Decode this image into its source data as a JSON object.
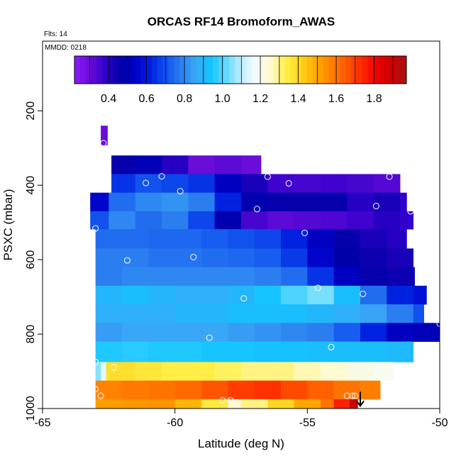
{
  "chart_data": {
    "type": "heatmap",
    "title": "ORCAS RF14 Bromoform_AWAS",
    "flights_note": "Flts: 14",
    "date_note": "MMDD: 0218",
    "xlabel": "Latitude (deg N)",
    "ylabel": "PSXC (mbar)",
    "xlim": [
      -65,
      -50
    ],
    "ylim": [
      1000,
      50
    ],
    "x_ticks": [
      -65,
      -60,
      -55,
      -50
    ],
    "y_ticks": [
      200,
      400,
      600,
      800,
      1000
    ],
    "grid": false,
    "colorbar": {
      "placement": "top",
      "range": [
        0.22,
        1.97
      ],
      "ticks": [
        0.4,
        0.6,
        0.8,
        1.0,
        1.2,
        1.4,
        1.6,
        1.8
      ],
      "tick_labels": [
        "0.4",
        "0.6",
        "0.8",
        "1.0",
        "1.2",
        "1.4",
        "1.6",
        "1.8"
      ],
      "palette": [
        "#8c1aff",
        "#6a0dd8",
        "#3300cc",
        "#0000a8",
        "#0000c8",
        "#0020e0",
        "#1050ee",
        "#2a7cf0",
        "#3aa6f5",
        "#12c4ff",
        "#5ad8ff",
        "#bfeeff",
        "#f4fbff",
        "#fffad0",
        "#fff04a",
        "#ffd21a",
        "#ffab00",
        "#ff8200",
        "#ff5a00",
        "#ff2a00",
        "#ee0000",
        "#cc0000",
        "#a81414"
      ]
    },
    "layers": [
      {
        "p_top": 240,
        "p_bot": 292,
        "cells": [
          [
            -62.8,
            -62.55,
            0.3
          ]
        ]
      },
      {
        "p_top": 320,
        "p_bot": 370,
        "cells": [
          [
            -62.4,
            -61.5,
            0.45
          ],
          [
            -61.5,
            -60.5,
            0.5
          ],
          [
            -60.5,
            -59.5,
            0.4
          ],
          [
            -59.5,
            -58.5,
            0.3
          ],
          [
            -58.5,
            -57.5,
            0.32
          ],
          [
            -57.5,
            -56.75,
            0.3
          ]
        ]
      },
      {
        "p_top": 370,
        "p_bot": 420,
        "cells": [
          [
            -62.4,
            -61.5,
            0.65
          ],
          [
            -61.5,
            -60.5,
            0.7
          ],
          [
            -60.5,
            -59.5,
            0.68
          ],
          [
            -59.5,
            -58.5,
            0.65
          ],
          [
            -58.5,
            -57.5,
            0.52
          ],
          [
            -57.5,
            -56.5,
            0.42
          ],
          [
            -56.5,
            -55.5,
            0.36
          ],
          [
            -55.5,
            -54.5,
            0.35
          ],
          [
            -54.5,
            -53.5,
            0.36
          ],
          [
            -53.5,
            -52.5,
            0.35
          ],
          [
            -52.5,
            -51.5,
            0.33
          ]
        ]
      },
      {
        "p_top": 420,
        "p_bot": 470,
        "cells": [
          [
            -63.2,
            -62.5,
            0.55
          ],
          [
            -62.5,
            -61.5,
            0.75
          ],
          [
            -61.5,
            -60.5,
            0.8
          ],
          [
            -60.5,
            -59.5,
            0.82
          ],
          [
            -59.5,
            -58.5,
            0.78
          ],
          [
            -58.5,
            -57.5,
            0.62
          ],
          [
            -57.5,
            -56.5,
            0.48
          ],
          [
            -56.5,
            -55.5,
            0.45
          ],
          [
            -55.5,
            -54.5,
            0.45
          ],
          [
            -54.5,
            -53.5,
            0.45
          ],
          [
            -53.5,
            -52.5,
            0.4
          ],
          [
            -52.5,
            -51.5,
            0.42
          ],
          [
            -51.5,
            -51.25,
            0.38
          ]
        ]
      },
      {
        "p_top": 470,
        "p_bot": 518,
        "cells": [
          [
            -63.2,
            -62.5,
            0.7
          ],
          [
            -62.5,
            -61.5,
            0.8
          ],
          [
            -61.5,
            -60.5,
            0.75
          ],
          [
            -60.5,
            -59.5,
            0.78
          ],
          [
            -59.5,
            -58.5,
            0.68
          ],
          [
            -58.5,
            -57.5,
            0.48
          ],
          [
            -57.5,
            -56.5,
            0.35
          ],
          [
            -56.5,
            -55.5,
            0.32
          ],
          [
            -55.5,
            -54.5,
            0.33
          ],
          [
            -54.5,
            -53.5,
            0.34
          ],
          [
            -53.5,
            -52.5,
            0.36
          ],
          [
            -52.5,
            -51.5,
            0.4
          ],
          [
            -51.5,
            -51.0,
            0.38
          ]
        ]
      },
      {
        "p_top": 518,
        "p_bot": 570,
        "cells": [
          [
            -63.0,
            -62.0,
            0.75
          ],
          [
            -62.0,
            -61.0,
            0.75
          ],
          [
            -61.0,
            -60.0,
            0.74
          ],
          [
            -60.0,
            -59.0,
            0.74
          ],
          [
            -59.0,
            -58.0,
            0.72
          ],
          [
            -58.0,
            -57.0,
            0.7
          ],
          [
            -57.0,
            -56.0,
            0.68
          ],
          [
            -56.0,
            -55.0,
            0.62
          ],
          [
            -55.0,
            -54.0,
            0.52
          ],
          [
            -54.0,
            -53.0,
            0.45
          ],
          [
            -53.0,
            -52.0,
            0.42
          ],
          [
            -52.0,
            -51.25,
            0.4
          ]
        ]
      },
      {
        "p_top": 570,
        "p_bot": 620,
        "cells": [
          [
            -63.0,
            -62.0,
            0.78
          ],
          [
            -62.0,
            -61.0,
            0.78
          ],
          [
            -61.0,
            -60.0,
            0.76
          ],
          [
            -60.0,
            -59.0,
            0.76
          ],
          [
            -59.0,
            -58.0,
            0.75
          ],
          [
            -58.0,
            -57.0,
            0.74
          ],
          [
            -57.0,
            -56.0,
            0.72
          ],
          [
            -56.0,
            -55.0,
            0.66
          ],
          [
            -55.0,
            -54.0,
            0.55
          ],
          [
            -54.0,
            -53.0,
            0.46
          ],
          [
            -53.0,
            -52.0,
            0.44
          ],
          [
            -52.0,
            -51.0,
            0.42
          ]
        ]
      },
      {
        "p_top": 620,
        "p_bot": 670,
        "cells": [
          [
            -63.0,
            -62.0,
            0.78
          ],
          [
            -62.0,
            -61.0,
            0.8
          ],
          [
            -61.0,
            -60.0,
            0.8
          ],
          [
            -60.0,
            -59.0,
            0.8
          ],
          [
            -59.0,
            -58.0,
            0.8
          ],
          [
            -58.0,
            -57.0,
            0.8
          ],
          [
            -57.0,
            -56.0,
            0.78
          ],
          [
            -56.0,
            -55.0,
            0.75
          ],
          [
            -55.0,
            -54.0,
            0.65
          ],
          [
            -54.0,
            -53.0,
            0.52
          ],
          [
            -53.0,
            -52.0,
            0.45
          ],
          [
            -52.0,
            -50.95,
            0.44
          ]
        ]
      },
      {
        "p_top": 670,
        "p_bot": 720,
        "cells": [
          [
            -63.0,
            -62.0,
            0.9
          ],
          [
            -62.0,
            -61.0,
            0.92
          ],
          [
            -61.0,
            -60.0,
            0.9
          ],
          [
            -60.0,
            -59.0,
            0.88
          ],
          [
            -59.0,
            -58.0,
            0.88
          ],
          [
            -58.0,
            -57.0,
            0.9
          ],
          [
            -57.0,
            -56.0,
            0.94
          ],
          [
            -56.0,
            -55.0,
            1.0
          ],
          [
            -55.0,
            -54.0,
            1.04
          ],
          [
            -54.0,
            -53.0,
            0.92
          ],
          [
            -53.0,
            -52.0,
            0.75
          ],
          [
            -52.0,
            -51.0,
            0.62
          ],
          [
            -51.0,
            -50.5,
            0.58
          ]
        ]
      },
      {
        "p_top": 720,
        "p_bot": 770,
        "cells": [
          [
            -63.0,
            -62.0,
            0.88
          ],
          [
            -62.0,
            -61.0,
            0.88
          ],
          [
            -61.0,
            -60.0,
            0.88
          ],
          [
            -60.0,
            -59.0,
            0.9
          ],
          [
            -59.0,
            -58.0,
            0.9
          ],
          [
            -58.0,
            -57.0,
            0.92
          ],
          [
            -57.0,
            -56.0,
            0.92
          ],
          [
            -56.0,
            -55.0,
            0.92
          ],
          [
            -55.0,
            -54.0,
            0.9
          ],
          [
            -54.0,
            -53.0,
            0.88
          ],
          [
            -53.0,
            -52.0,
            0.85
          ],
          [
            -52.0,
            -51.0,
            0.78
          ],
          [
            -51.0,
            -50.6,
            0.7
          ]
        ]
      },
      {
        "p_top": 770,
        "p_bot": 820,
        "cells": [
          [
            -63.0,
            -62.0,
            0.84
          ],
          [
            -62.0,
            -61.0,
            0.86
          ],
          [
            -61.0,
            -60.0,
            0.86
          ],
          [
            -60.0,
            -59.0,
            0.86
          ],
          [
            -59.0,
            -58.0,
            0.86
          ],
          [
            -58.0,
            -57.0,
            0.84
          ],
          [
            -57.0,
            -56.0,
            0.82
          ],
          [
            -56.0,
            -55.0,
            0.8
          ],
          [
            -55.0,
            -54.0,
            0.78
          ],
          [
            -54.0,
            -53.0,
            0.72
          ],
          [
            -53.0,
            -52.0,
            0.62
          ],
          [
            -52.0,
            -51.0,
            0.52
          ],
          [
            -51.0,
            -50.0,
            0.5
          ]
        ]
      },
      {
        "p_top": 820,
        "p_bot": 875,
        "cells": [
          [
            -63.0,
            -62.0,
            0.95
          ],
          [
            -62.0,
            -61.0,
            0.96
          ],
          [
            -61.0,
            -60.0,
            0.95
          ],
          [
            -60.0,
            -59.0,
            0.95
          ],
          [
            -59.0,
            -58.0,
            0.94
          ],
          [
            -58.0,
            -57.0,
            0.94
          ],
          [
            -57.0,
            -56.0,
            0.93
          ],
          [
            -56.0,
            -55.0,
            0.93
          ],
          [
            -55.0,
            -54.0,
            0.92
          ],
          [
            -54.0,
            -53.0,
            0.92
          ],
          [
            -53.0,
            -52.0,
            0.92
          ],
          [
            -52.0,
            -51.0,
            0.91
          ]
        ]
      },
      {
        "p_top": 875,
        "p_bot": 925,
        "cells": [
          [
            -63.0,
            -62.8,
            1.05
          ],
          [
            -62.8,
            -62.6,
            1.15
          ],
          [
            -62.6,
            -61.5,
            1.38
          ],
          [
            -61.5,
            -60.5,
            1.36
          ],
          [
            -60.5,
            -59.5,
            1.34
          ],
          [
            -59.5,
            -58.5,
            1.34
          ],
          [
            -58.5,
            -57.5,
            1.32
          ],
          [
            -57.5,
            -56.5,
            1.3
          ],
          [
            -56.5,
            -55.5,
            1.3
          ],
          [
            -55.5,
            -54.5,
            1.27
          ],
          [
            -54.5,
            -53.5,
            1.25
          ],
          [
            -53.5,
            -52.5,
            1.22
          ],
          [
            -52.5,
            -51.75,
            1.2
          ]
        ]
      },
      {
        "p_top": 925,
        "p_bot": 975,
        "cells": [
          [
            -63.0,
            -62.0,
            1.57
          ],
          [
            -62.0,
            -61.0,
            1.59
          ],
          [
            -61.0,
            -60.0,
            1.6
          ],
          [
            -60.0,
            -59.0,
            1.62
          ],
          [
            -59.0,
            -58.0,
            1.66
          ],
          [
            -58.0,
            -57.0,
            1.7
          ],
          [
            -57.0,
            -56.0,
            1.72
          ],
          [
            -56.0,
            -55.0,
            1.68
          ],
          [
            -55.0,
            -54.0,
            1.64
          ],
          [
            -54.0,
            -53.0,
            1.6
          ],
          [
            -53.0,
            -52.25,
            1.58
          ]
        ]
      },
      {
        "p_top": 975,
        "p_bot": 1010,
        "cells": [
          [
            -63.0,
            -62.0,
            1.52
          ],
          [
            -62.0,
            -61.0,
            1.53
          ],
          [
            -61.0,
            -60.0,
            1.54
          ],
          [
            -60.0,
            -59.0,
            1.47
          ],
          [
            -59.0,
            -58.0,
            1.35
          ],
          [
            -58.0,
            -57.5,
            1.25
          ],
          [
            -57.5,
            -56.5,
            1.3
          ],
          [
            -56.5,
            -55.5,
            1.4
          ],
          [
            -55.5,
            -54.5,
            1.5
          ],
          [
            -54.5,
            -54.0,
            1.6
          ],
          [
            -54.0,
            -53.4,
            1.75
          ],
          [
            -53.4,
            -53.1,
            1.9
          ]
        ]
      }
    ],
    "sample_points": [
      {
        "lat": -62.7,
        "p": 287
      },
      {
        "lat": -61.1,
        "p": 394
      },
      {
        "lat": -60.5,
        "p": 376
      },
      {
        "lat": -59.8,
        "p": 416
      },
      {
        "lat": -56.5,
        "p": 377
      },
      {
        "lat": -55.7,
        "p": 395
      },
      {
        "lat": -51.9,
        "p": 377
      },
      {
        "lat": -52.4,
        "p": 456
      },
      {
        "lat": -51.1,
        "p": 470
      },
      {
        "lat": -56.9,
        "p": 464
      },
      {
        "lat": -55.1,
        "p": 528
      },
      {
        "lat": -63.0,
        "p": 516
      },
      {
        "lat": -61.8,
        "p": 602
      },
      {
        "lat": -59.3,
        "p": 593
      },
      {
        "lat": -50.6,
        "p": 620
      },
      {
        "lat": -54.6,
        "p": 676
      },
      {
        "lat": -52.9,
        "p": 692
      },
      {
        "lat": -57.4,
        "p": 704
      },
      {
        "lat": -50.0,
        "p": 772
      },
      {
        "lat": -58.7,
        "p": 810
      },
      {
        "lat": -54.1,
        "p": 835
      },
      {
        "lat": -63.0,
        "p": 875
      },
      {
        "lat": -62.3,
        "p": 889
      },
      {
        "lat": -63.0,
        "p": 948
      },
      {
        "lat": -62.8,
        "p": 966
      },
      {
        "lat": -58.2,
        "p": 978
      },
      {
        "lat": -57.9,
        "p": 978
      },
      {
        "lat": -53.5,
        "p": 966
      },
      {
        "lat": -53.3,
        "p": 966
      },
      {
        "lat": -53.2,
        "p": 966
      }
    ],
    "marker": {
      "lat": -53.0,
      "p": 955,
      "symbol": "down-arrow"
    }
  }
}
